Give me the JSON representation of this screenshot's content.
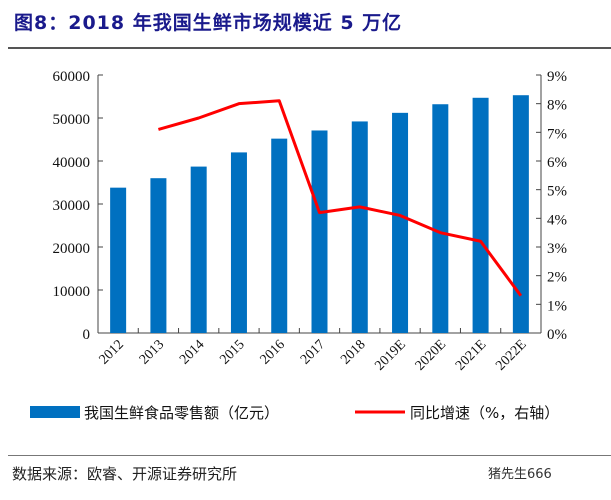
{
  "title": "图8：2018 年我国生鲜市场规模近 5 万亿",
  "source": "数据来源：欧睿、开源证券研究所",
  "watermark": "猪先生666",
  "chart_data": {
    "type": "bar+line",
    "categories": [
      "2012",
      "2013",
      "2014",
      "2015",
      "2016",
      "2017",
      "2018",
      "2019E",
      "2020E",
      "2021E",
      "2022E"
    ],
    "series": [
      {
        "name": "我国生鲜食品零售额（亿元）",
        "type": "bar",
        "axis": "left",
        "color": "#0070c0",
        "values": [
          33800,
          36000,
          38700,
          42000,
          45200,
          47100,
          49200,
          51200,
          53200,
          54700,
          55300
        ]
      },
      {
        "name": "同比增速（%，右轴）",
        "type": "line",
        "axis": "right",
        "color": "#ff0000",
        "values": [
          null,
          7.1,
          7.5,
          8.0,
          8.1,
          4.2,
          4.4,
          4.1,
          3.5,
          3.2,
          1.3
        ]
      }
    ],
    "ylim": [
      0,
      60000
    ],
    "yticks": [
      "0",
      "10000",
      "20000",
      "30000",
      "40000",
      "50000",
      "60000"
    ],
    "y2lim": [
      0,
      9
    ],
    "y2ticks": [
      "0%",
      "1%",
      "2%",
      "3%",
      "4%",
      "5%",
      "6%",
      "7%",
      "8%",
      "9%"
    ],
    "legend": "bottom",
    "grid": false
  }
}
